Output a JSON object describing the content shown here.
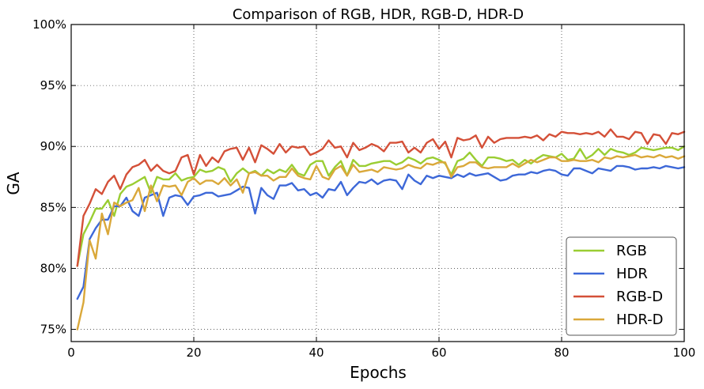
{
  "chart_data": {
    "type": "line",
    "title": "Comparison of RGB, HDR, RGB-D, HDR-D",
    "xlabel": "Epochs",
    "ylabel": "GA",
    "xlim": [
      0,
      100
    ],
    "ylim": [
      0.74,
      1.0
    ],
    "xticks": [
      0,
      20,
      40,
      60,
      80,
      100
    ],
    "xtick_labels": [
      "0",
      "20",
      "40",
      "60",
      "80",
      "100"
    ],
    "yticks": [
      0.75,
      0.8,
      0.85,
      0.9,
      0.95,
      1.0
    ],
    "ytick_labels": [
      "75%",
      "80%",
      "85%",
      "90%",
      "95%",
      "100%"
    ],
    "grid": true,
    "legend_position": "bottom-right",
    "series": [
      {
        "name": "RGB",
        "color": "#9acd32",
        "x": [
          1,
          2,
          3,
          4,
          5,
          6,
          7,
          8,
          9,
          10,
          11,
          12,
          13,
          14,
          15,
          16,
          17,
          18,
          19,
          20,
          21,
          22,
          23,
          24,
          25,
          26,
          27,
          28,
          29,
          30,
          31,
          32,
          33,
          34,
          35,
          36,
          37,
          38,
          39,
          40,
          41,
          42,
          43,
          44,
          45,
          46,
          47,
          48,
          49,
          50,
          51,
          52,
          53,
          54,
          55,
          56,
          57,
          58,
          59,
          60,
          61,
          62,
          63,
          64,
          65,
          66,
          67,
          68,
          69,
          70,
          71,
          72,
          73,
          74,
          75,
          76,
          77,
          78,
          79,
          80,
          81,
          82,
          83,
          84,
          85,
          86,
          87,
          88,
          89,
          90,
          91,
          92,
          93,
          94,
          95,
          96,
          97,
          98,
          99,
          100
        ],
        "y": [
          0.802,
          0.828,
          0.838,
          0.849,
          0.849,
          0.856,
          0.843,
          0.861,
          0.867,
          0.869,
          0.872,
          0.875,
          0.862,
          0.875,
          0.873,
          0.873,
          0.878,
          0.872,
          0.874,
          0.875,
          0.881,
          0.879,
          0.88,
          0.883,
          0.881,
          0.871,
          0.878,
          0.882,
          0.878,
          0.88,
          0.876,
          0.881,
          0.878,
          0.881,
          0.879,
          0.885,
          0.878,
          0.876,
          0.885,
          0.888,
          0.888,
          0.876,
          0.883,
          0.888,
          0.876,
          0.889,
          0.884,
          0.884,
          0.886,
          0.887,
          0.888,
          0.888,
          0.885,
          0.887,
          0.891,
          0.889,
          0.886,
          0.89,
          0.891,
          0.889,
          0.886,
          0.877,
          0.888,
          0.89,
          0.895,
          0.889,
          0.884,
          0.891,
          0.891,
          0.89,
          0.888,
          0.889,
          0.885,
          0.889,
          0.886,
          0.89,
          0.893,
          0.892,
          0.891,
          0.894,
          0.889,
          0.89,
          0.898,
          0.89,
          0.893,
          0.898,
          0.893,
          0.898,
          0.896,
          0.895,
          0.893,
          0.895,
          0.899,
          0.898,
          0.897,
          0.898,
          0.899,
          0.899,
          0.897,
          0.9
        ]
      },
      {
        "name": "HDR",
        "color": "#3d68d8",
        "x": [
          1,
          2,
          3,
          4,
          5,
          6,
          7,
          8,
          9,
          10,
          11,
          12,
          13,
          14,
          15,
          16,
          17,
          18,
          19,
          20,
          21,
          22,
          23,
          24,
          25,
          26,
          27,
          28,
          29,
          30,
          31,
          32,
          33,
          34,
          35,
          36,
          37,
          38,
          39,
          40,
          41,
          42,
          43,
          44,
          45,
          46,
          47,
          48,
          49,
          50,
          51,
          52,
          53,
          54,
          55,
          56,
          57,
          58,
          59,
          60,
          61,
          62,
          63,
          64,
          65,
          66,
          67,
          68,
          69,
          70,
          71,
          72,
          73,
          74,
          75,
          76,
          77,
          78,
          79,
          80,
          81,
          82,
          83,
          84,
          85,
          86,
          87,
          88,
          89,
          90,
          91,
          92,
          93,
          94,
          95,
          96,
          97,
          98,
          99,
          100
        ],
        "y": [
          0.775,
          0.785,
          0.824,
          0.833,
          0.84,
          0.84,
          0.851,
          0.851,
          0.858,
          0.847,
          0.843,
          0.858,
          0.86,
          0.862,
          0.843,
          0.858,
          0.86,
          0.859,
          0.852,
          0.859,
          0.86,
          0.862,
          0.862,
          0.859,
          0.86,
          0.861,
          0.864,
          0.867,
          0.866,
          0.845,
          0.866,
          0.86,
          0.857,
          0.868,
          0.868,
          0.87,
          0.864,
          0.865,
          0.86,
          0.862,
          0.858,
          0.865,
          0.864,
          0.871,
          0.86,
          0.866,
          0.871,
          0.87,
          0.873,
          0.869,
          0.872,
          0.873,
          0.872,
          0.865,
          0.877,
          0.872,
          0.869,
          0.876,
          0.874,
          0.876,
          0.875,
          0.874,
          0.877,
          0.875,
          0.878,
          0.876,
          0.877,
          0.878,
          0.875,
          0.872,
          0.873,
          0.876,
          0.877,
          0.877,
          0.879,
          0.878,
          0.88,
          0.881,
          0.88,
          0.877,
          0.876,
          0.882,
          0.882,
          0.88,
          0.878,
          0.882,
          0.881,
          0.88,
          0.884,
          0.884,
          0.883,
          0.881,
          0.882,
          0.882,
          0.883,
          0.882,
          0.884,
          0.883,
          0.882,
          0.883
        ]
      },
      {
        "name": "RGB-D",
        "color": "#d45038",
        "x": [
          1,
          2,
          3,
          4,
          5,
          6,
          7,
          8,
          9,
          10,
          11,
          12,
          13,
          14,
          15,
          16,
          17,
          18,
          19,
          20,
          21,
          22,
          23,
          24,
          25,
          26,
          27,
          28,
          29,
          30,
          31,
          32,
          33,
          34,
          35,
          36,
          37,
          38,
          39,
          40,
          41,
          42,
          43,
          44,
          45,
          46,
          47,
          48,
          49,
          50,
          51,
          52,
          53,
          54,
          55,
          56,
          57,
          58,
          59,
          60,
          61,
          62,
          63,
          64,
          65,
          66,
          67,
          68,
          69,
          70,
          71,
          72,
          73,
          74,
          75,
          76,
          77,
          78,
          79,
          80,
          81,
          82,
          83,
          84,
          85,
          86,
          87,
          88,
          89,
          90,
          91,
          92,
          93,
          94,
          95,
          96,
          97,
          98,
          99,
          100
        ],
        "y": [
          0.802,
          0.843,
          0.853,
          0.865,
          0.861,
          0.871,
          0.876,
          0.865,
          0.877,
          0.883,
          0.885,
          0.889,
          0.88,
          0.885,
          0.88,
          0.878,
          0.88,
          0.891,
          0.893,
          0.877,
          0.893,
          0.884,
          0.891,
          0.887,
          0.896,
          0.898,
          0.899,
          0.889,
          0.899,
          0.887,
          0.901,
          0.898,
          0.894,
          0.902,
          0.895,
          0.9,
          0.899,
          0.9,
          0.893,
          0.895,
          0.898,
          0.905,
          0.899,
          0.9,
          0.891,
          0.903,
          0.897,
          0.899,
          0.902,
          0.9,
          0.896,
          0.903,
          0.903,
          0.904,
          0.895,
          0.899,
          0.895,
          0.903,
          0.906,
          0.898,
          0.904,
          0.891,
          0.907,
          0.905,
          0.906,
          0.909,
          0.899,
          0.908,
          0.903,
          0.906,
          0.907,
          0.907,
          0.907,
          0.908,
          0.907,
          0.909,
          0.905,
          0.91,
          0.908,
          0.912,
          0.911,
          0.911,
          0.91,
          0.911,
          0.91,
          0.912,
          0.908,
          0.914,
          0.908,
          0.908,
          0.906,
          0.912,
          0.911,
          0.902,
          0.91,
          0.909,
          0.902,
          0.911,
          0.91,
          0.912
        ]
      },
      {
        "name": "HDR-D",
        "color": "#daa83a",
        "x": [
          1,
          2,
          3,
          4,
          5,
          6,
          7,
          8,
          9,
          10,
          11,
          12,
          13,
          14,
          15,
          16,
          17,
          18,
          19,
          20,
          21,
          22,
          23,
          24,
          25,
          26,
          27,
          28,
          29,
          30,
          31,
          32,
          33,
          34,
          35,
          36,
          37,
          38,
          39,
          40,
          41,
          42,
          43,
          44,
          45,
          46,
          47,
          48,
          49,
          50,
          51,
          52,
          53,
          54,
          55,
          56,
          57,
          58,
          59,
          60,
          61,
          62,
          63,
          64,
          65,
          66,
          67,
          68,
          69,
          70,
          71,
          72,
          73,
          74,
          75,
          76,
          77,
          78,
          79,
          80,
          81,
          82,
          83,
          84,
          85,
          86,
          87,
          88,
          89,
          90,
          91,
          92,
          93,
          94,
          95,
          96,
          97,
          98,
          99,
          100
        ],
        "y": [
          0.75,
          0.772,
          0.823,
          0.808,
          0.845,
          0.828,
          0.854,
          0.851,
          0.854,
          0.856,
          0.866,
          0.847,
          0.868,
          0.855,
          0.868,
          0.867,
          0.868,
          0.86,
          0.871,
          0.874,
          0.869,
          0.872,
          0.872,
          0.869,
          0.874,
          0.868,
          0.873,
          0.862,
          0.878,
          0.879,
          0.876,
          0.876,
          0.872,
          0.875,
          0.875,
          0.882,
          0.876,
          0.874,
          0.873,
          0.884,
          0.875,
          0.873,
          0.881,
          0.884,
          0.876,
          0.885,
          0.879,
          0.88,
          0.881,
          0.879,
          0.883,
          0.882,
          0.881,
          0.882,
          0.885,
          0.883,
          0.882,
          0.886,
          0.885,
          0.887,
          0.887,
          0.875,
          0.883,
          0.884,
          0.887,
          0.887,
          0.883,
          0.882,
          0.883,
          0.883,
          0.883,
          0.886,
          0.883,
          0.886,
          0.889,
          0.887,
          0.889,
          0.891,
          0.891,
          0.888,
          0.888,
          0.889,
          0.888,
          0.888,
          0.889,
          0.887,
          0.891,
          0.89,
          0.892,
          0.891,
          0.892,
          0.893,
          0.891,
          0.892,
          0.891,
          0.893,
          0.891,
          0.892,
          0.89,
          0.892
        ]
      }
    ]
  }
}
